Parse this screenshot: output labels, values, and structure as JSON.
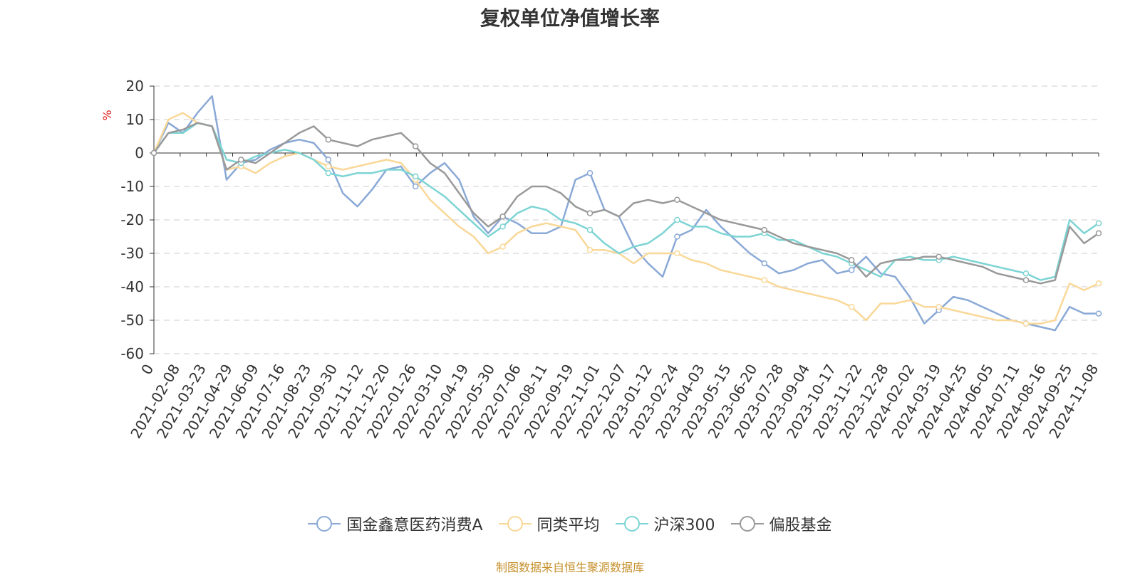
{
  "page": {
    "source_note": "制图数据来自恒生聚源数据库"
  },
  "chart_data": {
    "type": "line",
    "title": "复权单位净值增长率",
    "ylabel": "%",
    "ylim": [
      -60,
      20
    ],
    "yticks": [
      20,
      10,
      0,
      -10,
      -20,
      -30,
      -40,
      -50,
      -60
    ],
    "x_ticks": [
      "0",
      "2021-02-08",
      "2021-03-23",
      "2021-04-29",
      "2021-06-09",
      "2021-07-16",
      "2021-08-23",
      "2021-09-30",
      "2021-11-12",
      "2021-12-20",
      "2022-01-26",
      "2022-03-10",
      "2022-04-19",
      "2022-05-30",
      "2022-07-06",
      "2022-08-11",
      "2022-09-19",
      "2022-11-01",
      "2022-12-07",
      "2023-01-12",
      "2023-02-24",
      "2023-04-03",
      "2023-05-15",
      "2023-06-20",
      "2023-07-28",
      "2023-09-04",
      "2023-10-17",
      "2023-11-22",
      "2023-12-28",
      "2024-02-02",
      "2024-03-19",
      "2024-04-25",
      "2024-06-05",
      "2024-07-11",
      "2024-08-16",
      "2024-09-25",
      "2024-11-08"
    ],
    "grid": "dashed horizontal",
    "legend_position": "bottom-center",
    "series": [
      {
        "name": "国金鑫意医药消费A",
        "color": "#8aa9d6",
        "values": [
          0,
          9,
          6,
          12,
          17,
          -8,
          -3,
          -2,
          1,
          3,
          4,
          3,
          -2,
          -12,
          -16,
          -11,
          -5,
          -4,
          -10,
          -6,
          -3,
          -8,
          -19,
          -24,
          -19,
          -21,
          -24,
          -24,
          -22,
          -8,
          -6,
          -17,
          -19,
          -28,
          -33,
          -37,
          -25,
          -23,
          -17,
          -22,
          -26,
          -30,
          -33,
          -36,
          -35,
          -33,
          -32,
          -36,
          -35,
          -31,
          -36,
          -37,
          -43,
          -51,
          -47,
          -43,
          -44,
          -46,
          -48,
          -50,
          -51,
          -52,
          -53,
          -46,
          -48,
          -48
        ]
      },
      {
        "name": "同类平均",
        "color": "#f9d898",
        "values": [
          0,
          10,
          12,
          9,
          8,
          -5,
          -4,
          -6,
          -3,
          -1,
          0,
          -2,
          -4,
          -5,
          -4,
          -3,
          -2,
          -3,
          -8,
          -14,
          -18,
          -22,
          -25,
          -30,
          -28,
          -24,
          -22,
          -21,
          -22,
          -23,
          -29,
          -29,
          -30,
          -33,
          -30,
          -30,
          -30,
          -32,
          -33,
          -35,
          -36,
          -37,
          -38,
          -40,
          -41,
          -42,
          -43,
          -44,
          -46,
          -50,
          -45,
          -45,
          -44,
          -46,
          -46,
          -47,
          -48,
          -49,
          -50,
          -50,
          -51,
          -51,
          -50,
          -39,
          -41,
          -39
        ]
      },
      {
        "name": "沪深300",
        "color": "#7dd4d4",
        "values": [
          0,
          6,
          6,
          9,
          8,
          -2,
          -3,
          -1,
          0,
          1,
          0,
          -2,
          -6,
          -7,
          -6,
          -6,
          -5,
          -5,
          -7,
          -10,
          -13,
          -17,
          -21,
          -25,
          -22,
          -18,
          -16,
          -17,
          -20,
          -21,
          -23,
          -27,
          -30,
          -28,
          -27,
          -24,
          -20,
          -22,
          -22,
          -24,
          -25,
          -25,
          -24,
          -26,
          -26,
          -28,
          -30,
          -31,
          -33,
          -35,
          -37,
          -32,
          -31,
          -32,
          -32,
          -31,
          -32,
          -33,
          -34,
          -35,
          -36,
          -38,
          -37,
          -20,
          -24,
          -21
        ]
      },
      {
        "name": "偏股基金",
        "color": "#999999",
        "values": [
          0,
          6,
          7,
          9,
          8,
          -5,
          -2,
          -3,
          0,
          3,
          6,
          8,
          4,
          3,
          2,
          4,
          5,
          6,
          2,
          -3,
          -6,
          -12,
          -18,
          -22,
          -19,
          -13,
          -10,
          -10,
          -12,
          -16,
          -18,
          -17,
          -19,
          -15,
          -14,
          -15,
          -14,
          -16,
          -18,
          -20,
          -21,
          -22,
          -23,
          -25,
          -27,
          -28,
          -29,
          -30,
          -32,
          -37,
          -33,
          -32,
          -32,
          -31,
          -31,
          -32,
          -33,
          -34,
          -36,
          -37,
          -38,
          -39,
          -38,
          -22,
          -27,
          -24
        ]
      }
    ]
  }
}
